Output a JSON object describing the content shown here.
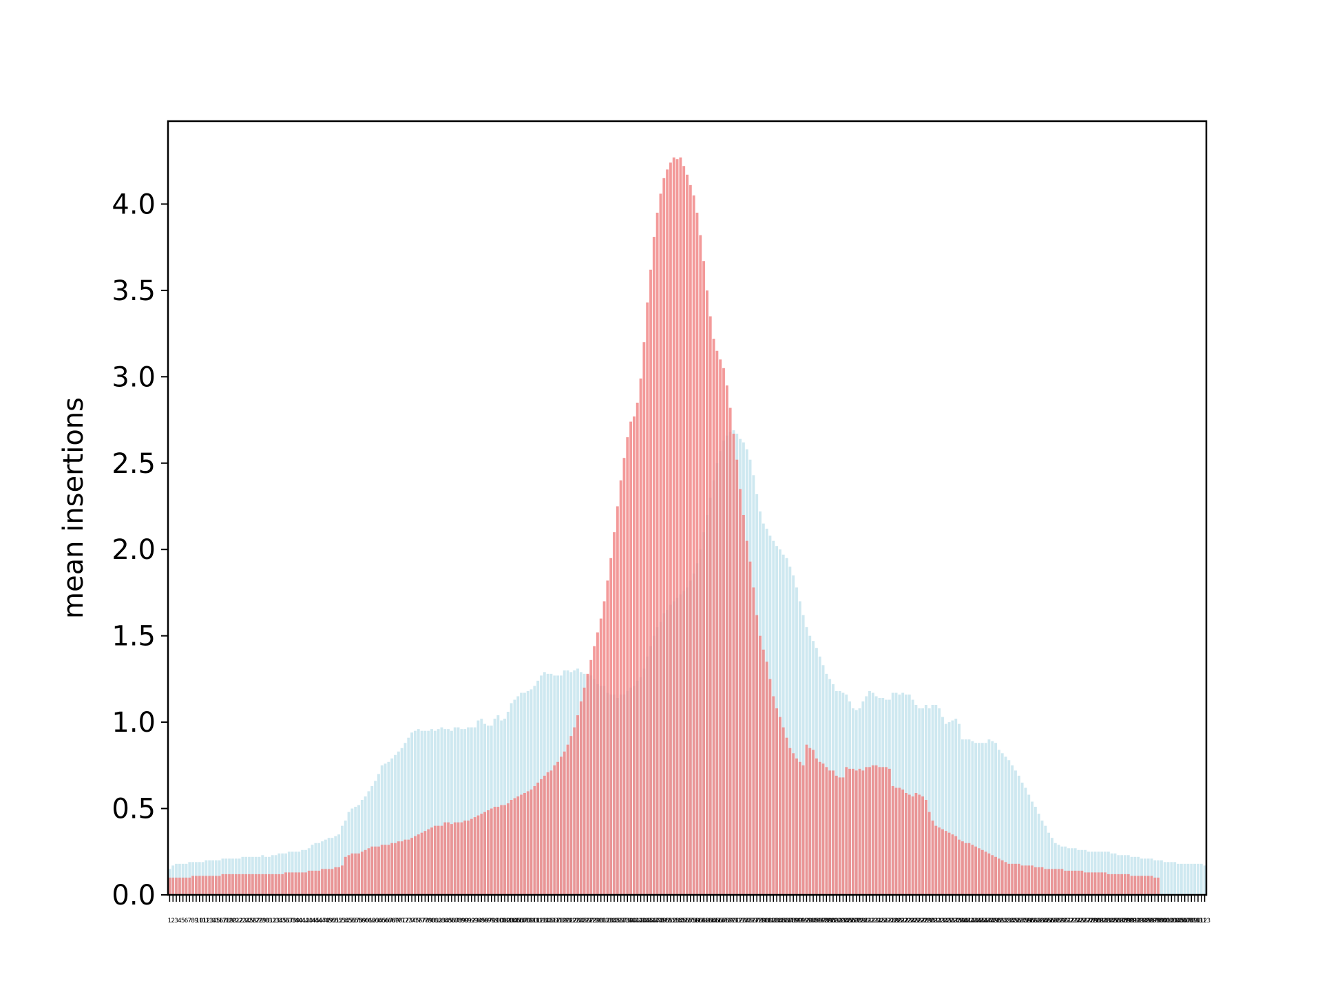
{
  "chart_data": {
    "type": "bar",
    "title": "",
    "xlabel": "",
    "ylabel": "mean insertions",
    "ylim": [
      0,
      4.48
    ],
    "yticks": [
      "0.0",
      "0.5",
      "1.0",
      "1.5",
      "2.0",
      "2.5",
      "3.0",
      "3.5",
      "4.0"
    ],
    "grid": false,
    "legend": "none",
    "categories_range": [
      1,
      302
    ],
    "series": [
      {
        "color": "#add8e6",
        "opacity": 0.6,
        "values": [
          0.15,
          0.17,
          0.18,
          0.18,
          0.18,
          0.18,
          0.19,
          0.19,
          0.19,
          0.19,
          0.19,
          0.2,
          0.2,
          0.2,
          0.2,
          0.2,
          0.21,
          0.21,
          0.21,
          0.21,
          0.21,
          0.21,
          0.22,
          0.22,
          0.22,
          0.22,
          0.22,
          0.22,
          0.23,
          0.22,
          0.22,
          0.23,
          0.23,
          0.24,
          0.24,
          0.24,
          0.25,
          0.25,
          0.25,
          0.25,
          0.26,
          0.26,
          0.27,
          0.29,
          0.3,
          0.3,
          0.31,
          0.32,
          0.33,
          0.33,
          0.34,
          0.35,
          0.4,
          0.43,
          0.48,
          0.5,
          0.51,
          0.52,
          0.55,
          0.57,
          0.6,
          0.63,
          0.66,
          0.7,
          0.75,
          0.76,
          0.77,
          0.79,
          0.81,
          0.83,
          0.85,
          0.88,
          0.91,
          0.94,
          0.95,
          0.96,
          0.95,
          0.95,
          0.95,
          0.96,
          0.95,
          0.96,
          0.97,
          0.96,
          0.96,
          0.95,
          0.97,
          0.97,
          0.96,
          0.96,
          0.97,
          0.97,
          0.97,
          1.01,
          1.02,
          0.99,
          0.98,
          0.98,
          1.02,
          1.04,
          1.01,
          1.02,
          1.06,
          1.11,
          1.13,
          1.15,
          1.17,
          1.17,
          1.18,
          1.19,
          1.21,
          1.24,
          1.27,
          1.29,
          1.28,
          1.28,
          1.27,
          1.27,
          1.27,
          1.3,
          1.3,
          1.29,
          1.3,
          1.31,
          1.29,
          1.28,
          1.27,
          1.27,
          1.25,
          1.22,
          1.21,
          1.21,
          1.17,
          1.16,
          1.16,
          1.14,
          1.16,
          1.16,
          1.18,
          1.2,
          1.21,
          1.24,
          1.26,
          1.31,
          1.38,
          1.44,
          1.5,
          1.55,
          1.58,
          1.63,
          1.65,
          1.68,
          1.7,
          1.72,
          1.74,
          1.76,
          1.78,
          1.82,
          1.86,
          1.92,
          2.0,
          2.1,
          2.2,
          2.3,
          2.4,
          2.5,
          2.57,
          2.63,
          2.66,
          2.68,
          2.69,
          2.67,
          2.64,
          2.62,
          2.58,
          2.52,
          2.43,
          2.32,
          2.22,
          2.15,
          2.12,
          2.08,
          2.05,
          2.02,
          2.0,
          1.97,
          1.95,
          1.9,
          1.85,
          1.78,
          1.7,
          1.62,
          1.55,
          1.5,
          1.47,
          1.43,
          1.38,
          1.33,
          1.28,
          1.25,
          1.22,
          1.18,
          1.18,
          1.17,
          1.16,
          1.12,
          1.08,
          1.07,
          1.08,
          1.12,
          1.15,
          1.18,
          1.17,
          1.15,
          1.14,
          1.14,
          1.13,
          1.13,
          1.17,
          1.17,
          1.16,
          1.17,
          1.16,
          1.16,
          1.13,
          1.1,
          1.08,
          1.08,
          1.1,
          1.08,
          1.1,
          1.1,
          1.08,
          1.03,
          0.99,
          1.0,
          1.01,
          1.02,
          0.99,
          0.9,
          0.9,
          0.9,
          0.89,
          0.88,
          0.88,
          0.88,
          0.88,
          0.9,
          0.89,
          0.88,
          0.84,
          0.82,
          0.8,
          0.78,
          0.75,
          0.72,
          0.69,
          0.65,
          0.62,
          0.58,
          0.54,
          0.51,
          0.47,
          0.43,
          0.4,
          0.36,
          0.33,
          0.3,
          0.29,
          0.28,
          0.28,
          0.27,
          0.27,
          0.27,
          0.26,
          0.26,
          0.26,
          0.25,
          0.25,
          0.25,
          0.25,
          0.25,
          0.25,
          0.25,
          0.24,
          0.24,
          0.23,
          0.23,
          0.23,
          0.23,
          0.22,
          0.22,
          0.22,
          0.21,
          0.21,
          0.21,
          0.21,
          0.2,
          0.2,
          0.2,
          0.19,
          0.19,
          0.19,
          0.19,
          0.18,
          0.18,
          0.18,
          0.18,
          0.18,
          0.18,
          0.18,
          0.18,
          0.17
        ]
      },
      {
        "color": "#f08080",
        "opacity": 0.8,
        "values": [
          0.1,
          0.1,
          0.1,
          0.1,
          0.1,
          0.1,
          0.1,
          0.11,
          0.11,
          0.11,
          0.11,
          0.11,
          0.11,
          0.11,
          0.11,
          0.11,
          0.12,
          0.12,
          0.12,
          0.12,
          0.12,
          0.12,
          0.12,
          0.12,
          0.12,
          0.12,
          0.12,
          0.12,
          0.12,
          0.12,
          0.12,
          0.12,
          0.12,
          0.12,
          0.12,
          0.13,
          0.13,
          0.13,
          0.13,
          0.13,
          0.13,
          0.13,
          0.14,
          0.14,
          0.14,
          0.14,
          0.15,
          0.15,
          0.15,
          0.15,
          0.16,
          0.16,
          0.17,
          0.22,
          0.23,
          0.24,
          0.24,
          0.24,
          0.25,
          0.26,
          0.27,
          0.28,
          0.28,
          0.28,
          0.29,
          0.29,
          0.29,
          0.3,
          0.3,
          0.31,
          0.31,
          0.32,
          0.32,
          0.33,
          0.34,
          0.35,
          0.36,
          0.37,
          0.38,
          0.39,
          0.4,
          0.4,
          0.4,
          0.42,
          0.42,
          0.41,
          0.42,
          0.42,
          0.42,
          0.43,
          0.43,
          0.44,
          0.45,
          0.46,
          0.47,
          0.48,
          0.49,
          0.5,
          0.51,
          0.51,
          0.52,
          0.52,
          0.53,
          0.55,
          0.56,
          0.57,
          0.58,
          0.59,
          0.6,
          0.61,
          0.63,
          0.65,
          0.67,
          0.69,
          0.71,
          0.72,
          0.75,
          0.77,
          0.8,
          0.83,
          0.87,
          0.92,
          0.97,
          1.04,
          1.12,
          1.2,
          1.28,
          1.36,
          1.44,
          1.52,
          1.6,
          1.7,
          1.82,
          1.95,
          2.1,
          2.25,
          2.4,
          2.53,
          2.65,
          2.74,
          2.77,
          2.85,
          2.99,
          3.2,
          3.43,
          3.62,
          3.81,
          3.95,
          4.06,
          4.15,
          4.2,
          4.24,
          4.27,
          4.26,
          4.27,
          4.22,
          4.17,
          4.11,
          4.05,
          3.95,
          3.82,
          3.67,
          3.5,
          3.35,
          3.22,
          3.15,
          3.1,
          3.05,
          2.95,
          2.82,
          2.67,
          2.52,
          2.35,
          2.2,
          2.05,
          1.93,
          1.78,
          1.62,
          1.5,
          1.42,
          1.35,
          1.25,
          1.15,
          1.08,
          1.03,
          0.97,
          0.91,
          0.85,
          0.82,
          0.79,
          0.77,
          0.75,
          0.87,
          0.85,
          0.84,
          0.79,
          0.77,
          0.76,
          0.74,
          0.72,
          0.72,
          0.69,
          0.68,
          0.68,
          0.74,
          0.73,
          0.73,
          0.72,
          0.73,
          0.72,
          0.74,
          0.74,
          0.75,
          0.75,
          0.74,
          0.74,
          0.74,
          0.73,
          0.63,
          0.62,
          0.62,
          0.61,
          0.59,
          0.58,
          0.57,
          0.59,
          0.58,
          0.57,
          0.55,
          0.48,
          0.43,
          0.4,
          0.39,
          0.38,
          0.37,
          0.36,
          0.35,
          0.34,
          0.32,
          0.31,
          0.3,
          0.3,
          0.29,
          0.28,
          0.27,
          0.26,
          0.25,
          0.24,
          0.23,
          0.22,
          0.21,
          0.2,
          0.19,
          0.18,
          0.18,
          0.18,
          0.18,
          0.17,
          0.17,
          0.17,
          0.17,
          0.16,
          0.16,
          0.16,
          0.15,
          0.15,
          0.15,
          0.15,
          0.15,
          0.15,
          0.14,
          0.14,
          0.14,
          0.14,
          0.14,
          0.14,
          0.13,
          0.13,
          0.13,
          0.13,
          0.13,
          0.13,
          0.13,
          0.12,
          0.12,
          0.12,
          0.12,
          0.12,
          0.12,
          0.12,
          0.11,
          0.11,
          0.11,
          0.11,
          0.11,
          0.11,
          0.11,
          0.1,
          0.1
        ]
      }
    ]
  }
}
